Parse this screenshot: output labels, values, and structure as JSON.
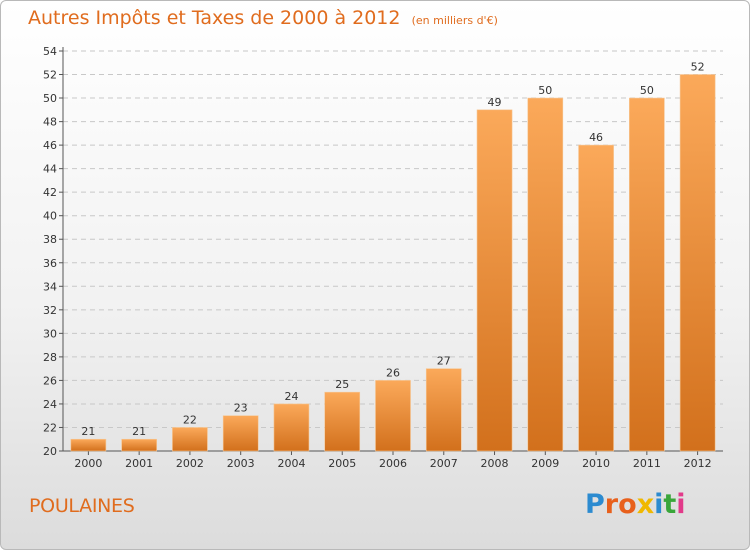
{
  "header": {
    "title": "Autres Impôts et Taxes de 2000 à 2012",
    "unit": "(en milliers d'€)"
  },
  "footer": {
    "commune": "POULAINES",
    "logo": "Proxiti"
  },
  "colors": {
    "bar_top": "#fba95a",
    "bar_bottom": "#d2701c",
    "accent": "#e06c1e",
    "grid": "#c8c8c8",
    "logo_letters": [
      "#2c8bd0",
      "#e8601c",
      "#e8601c",
      "#f0b800",
      "#2c8bd0",
      "#3aa63a",
      "#e23a8a"
    ]
  },
  "chart_data": {
    "type": "bar",
    "categories": [
      "2000",
      "2001",
      "2002",
      "2003",
      "2004",
      "2005",
      "2006",
      "2007",
      "2008",
      "2009",
      "2010",
      "2011",
      "2012"
    ],
    "values": [
      21,
      21,
      22,
      23,
      24,
      25,
      26,
      27,
      49,
      50,
      46,
      50,
      52
    ],
    "ylim": [
      20,
      54
    ],
    "yticks": [
      20,
      22,
      24,
      26,
      28,
      30,
      32,
      34,
      36,
      38,
      40,
      42,
      44,
      46,
      48,
      50,
      52,
      54
    ],
    "grid": true,
    "title": "Autres Impôts et Taxes de 2000 à 2012",
    "xlabel": "",
    "ylabel": ""
  }
}
